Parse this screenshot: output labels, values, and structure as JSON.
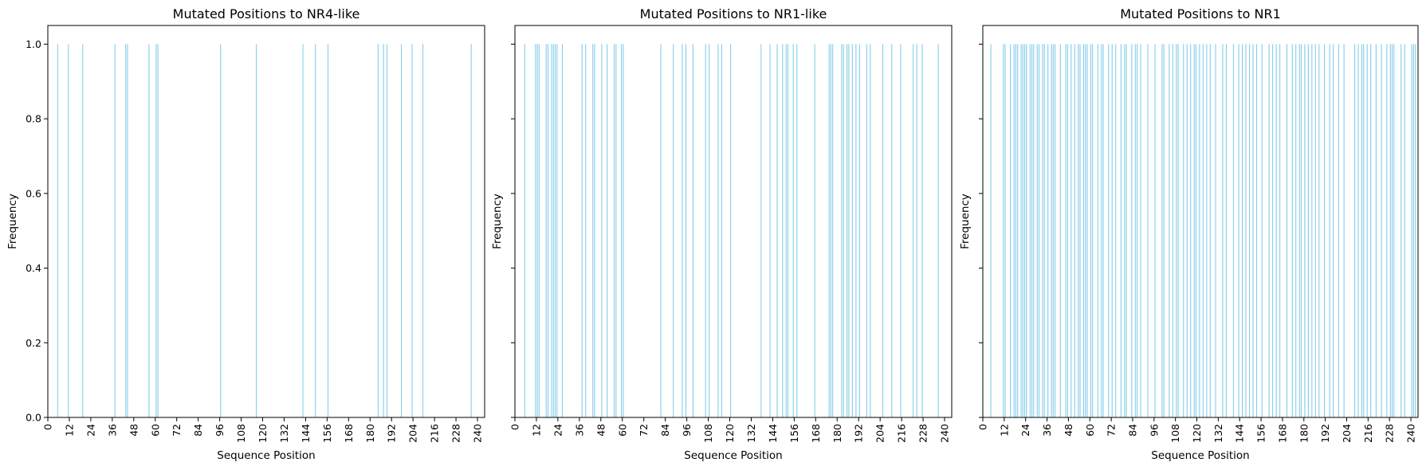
{
  "chart_data": [
    {
      "type": "bar",
      "title": "Mutated Positions to NR4-like",
      "xlabel": "Sequence Position",
      "ylabel": "Frequency",
      "xlim": [
        0,
        244
      ],
      "ylim": [
        0,
        1.05
      ],
      "xticks": [
        0,
        12,
        24,
        36,
        48,
        60,
        72,
        84,
        96,
        108,
        120,
        132,
        144,
        156,
        168,
        180,
        192,
        204,
        216,
        228,
        240
      ],
      "yticks": [
        "0.0",
        "0.2",
        "0.4",
        "0.6",
        "0.8",
        "1.0"
      ],
      "x": [
        5,
        11,
        19,
        37,
        43,
        44,
        56,
        60,
        61,
        96,
        116,
        142,
        149,
        156,
        184,
        187,
        189,
        197,
        203,
        209,
        236
      ],
      "values": [
        1,
        1,
        1,
        1,
        1,
        1,
        1,
        1,
        1,
        1,
        1,
        1,
        1,
        1,
        1,
        1,
        1,
        1,
        1,
        1,
        1
      ]
    },
    {
      "type": "bar",
      "title": "Mutated Positions to NR1-like",
      "xlabel": "Sequence Position",
      "ylabel": "Frequency",
      "xlim": [
        0,
        244
      ],
      "ylim": [
        0,
        1.05
      ],
      "xticks": [
        0,
        12,
        24,
        36,
        48,
        60,
        72,
        84,
        96,
        108,
        120,
        132,
        144,
        156,
        168,
        180,
        192,
        204,
        216,
        228,
        240
      ],
      "yticks": [
        "0.0",
        "0.2",
        "0.4",
        "0.6",
        "0.8",
        "1.0"
      ],
      "x": [
        5,
        11,
        12,
        13,
        17,
        18,
        20,
        21,
        22,
        23,
        26,
        37,
        39,
        43,
        44,
        48,
        51,
        55,
        56,
        59,
        60,
        81,
        88,
        93,
        95,
        99,
        106,
        108,
        113,
        115,
        120,
        137,
        142,
        146,
        149,
        151,
        152,
        155,
        157,
        167,
        175,
        176,
        177,
        182,
        183,
        185,
        186,
        188,
        190,
        192,
        196,
        198,
        205,
        210,
        215,
        222,
        224,
        227,
        236
      ],
      "values": [
        1,
        1,
        1,
        1,
        1,
        1,
        1,
        1,
        1,
        1,
        1,
        1,
        1,
        1,
        1,
        1,
        1,
        1,
        1,
        1,
        1,
        1,
        1,
        1,
        1,
        1,
        1,
        1,
        1,
        1,
        1,
        1,
        1,
        1,
        1,
        1,
        1,
        1,
        1,
        1,
        1,
        1,
        1,
        1,
        1,
        1,
        1,
        1,
        1,
        1,
        1,
        1,
        1,
        1,
        1,
        1,
        1,
        1,
        1
      ]
    },
    {
      "type": "bar",
      "title": "Mutated Positions to NR1",
      "xlabel": "Sequence Position",
      "ylabel": "Frequency",
      "xlim": [
        0,
        244
      ],
      "ylim": [
        0,
        1.05
      ],
      "xticks": [
        0,
        12,
        24,
        36,
        48,
        60,
        72,
        84,
        96,
        108,
        120,
        132,
        144,
        156,
        168,
        180,
        192,
        204,
        216,
        228,
        240
      ],
      "yticks": [
        "0.0",
        "0.2",
        "0.4",
        "0.6",
        "0.8",
        "1.0"
      ],
      "x": [
        4,
        11,
        12,
        15,
        17,
        18,
        19,
        21,
        22,
        23,
        24,
        26,
        27,
        28,
        30,
        31,
        33,
        34,
        36,
        38,
        39,
        40,
        43,
        46,
        47,
        49,
        51,
        53,
        54,
        56,
        57,
        58,
        60,
        61,
        64,
        66,
        67,
        70,
        72,
        74,
        77,
        79,
        80,
        83,
        85,
        86,
        88,
        92,
        96,
        100,
        101,
        104,
        106,
        108,
        109,
        112,
        114,
        116,
        118,
        119,
        121,
        123,
        125,
        127,
        130,
        134,
        136,
        140,
        143,
        145,
        147,
        149,
        151,
        153,
        156,
        160,
        162,
        164,
        166,
        170,
        173,
        175,
        177,
        178,
        180,
        182,
        184,
        186,
        188,
        191,
        194,
        196,
        199,
        202,
        208,
        210,
        212,
        213,
        215,
        217,
        220,
        223,
        226,
        228,
        229,
        230,
        234,
        236,
        240,
        241,
        242
      ]
    }
  ]
}
